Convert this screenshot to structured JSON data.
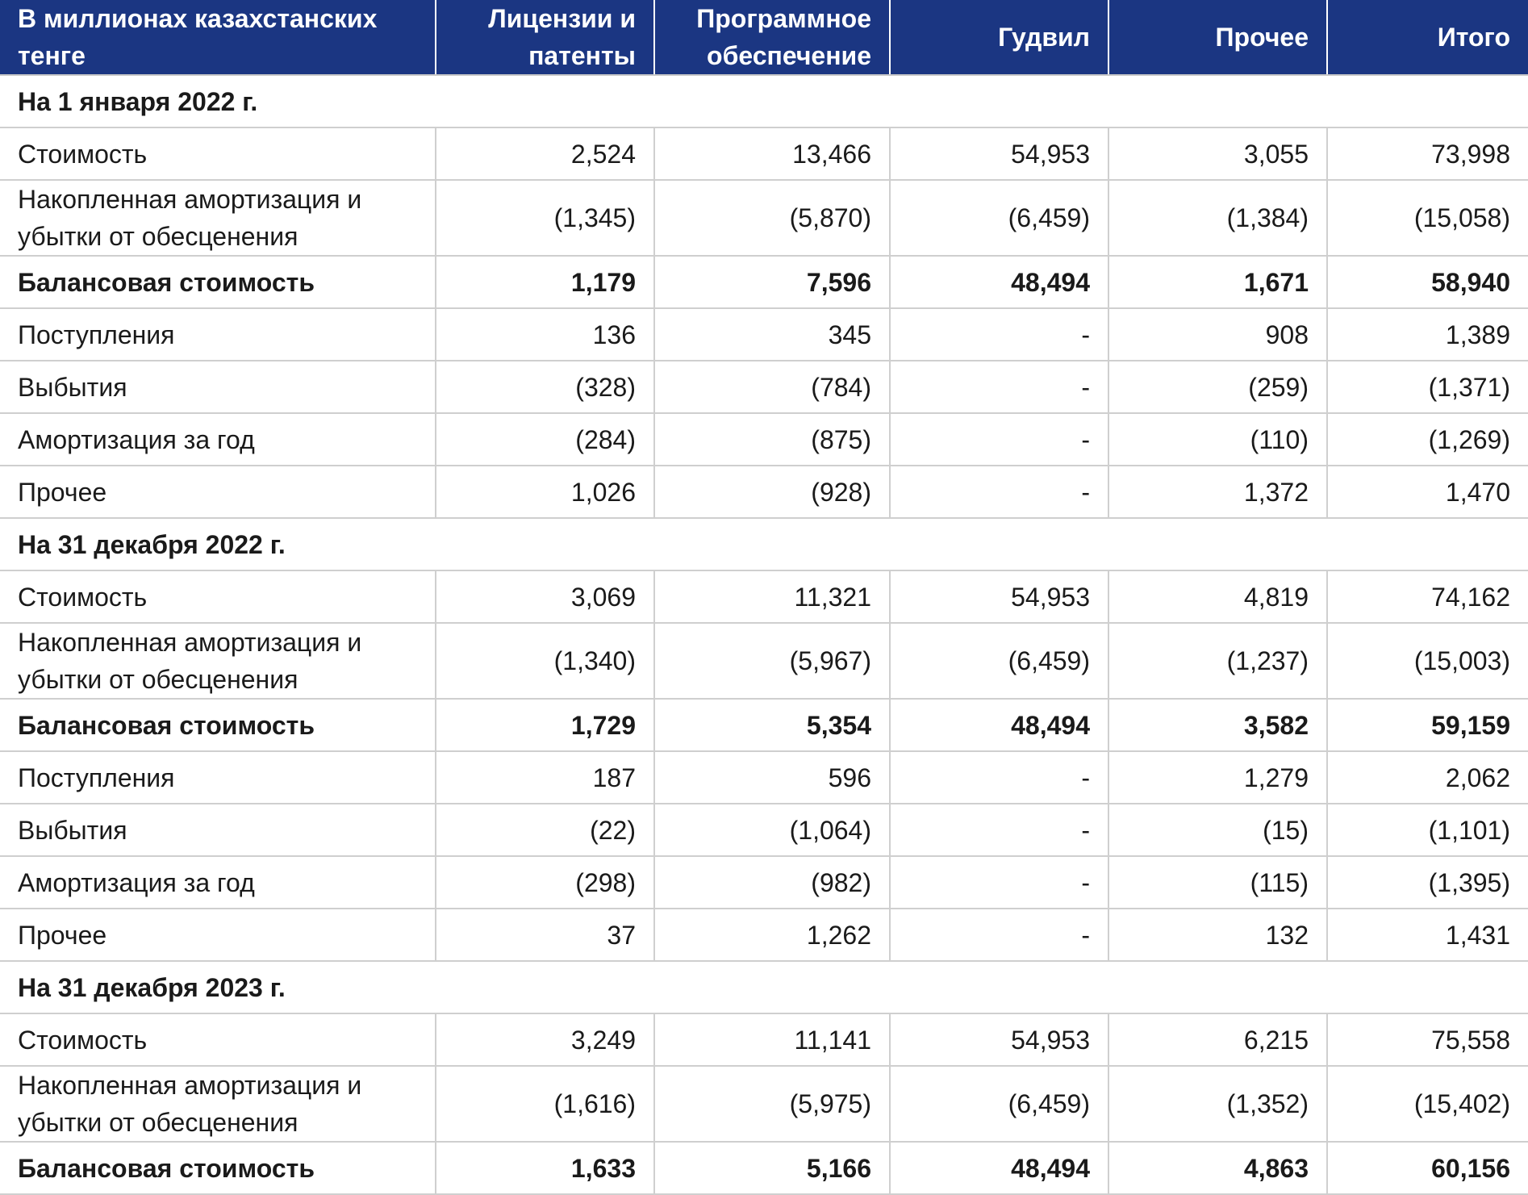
{
  "header": {
    "label": "В миллионах казахстанских тенге",
    "cols": [
      "Лицензии и патенты",
      "Программное обеспечение",
      "Гудвил",
      "Прочее",
      "Итого"
    ]
  },
  "sections": [
    {
      "title": "На 1 января 2022 г.",
      "rows": [
        {
          "label": "Стоимость",
          "values": [
            "2,524",
            "13,466",
            "54,953",
            "3,055",
            "73,998"
          ]
        },
        {
          "label": "Накопленная амортизация и убытки от обесценения",
          "values": [
            "(1,345)",
            "(5,870)",
            "(6,459)",
            "(1,384)",
            "(15,058)"
          ]
        },
        {
          "label": "Балансовая стоимость",
          "values": [
            "1,179",
            "7,596",
            "48,494",
            "1,671",
            "58,940"
          ]
        },
        {
          "label": "Поступления",
          "values": [
            "136",
            "345",
            "-",
            "908",
            "1,389"
          ]
        },
        {
          "label": "Выбытия",
          "values": [
            "(328)",
            "(784)",
            "-",
            "(259)",
            "(1,371)"
          ]
        },
        {
          "label": "Амортизация за год",
          "values": [
            "(284)",
            "(875)",
            "-",
            "(110)",
            "(1,269)"
          ]
        },
        {
          "label": "Прочее",
          "values": [
            "1,026",
            "(928)",
            "-",
            "1,372",
            "1,470"
          ]
        }
      ]
    },
    {
      "title": "На 31 декабря 2022 г.",
      "rows": [
        {
          "label": "Стоимость",
          "values": [
            "3,069",
            "11,321",
            "54,953",
            "4,819",
            "74,162"
          ]
        },
        {
          "label": "Накопленная амортизация и убытки от обесценения",
          "values": [
            "(1,340)",
            "(5,967)",
            "(6,459)",
            "(1,237)",
            "(15,003)"
          ]
        },
        {
          "label": "Балансовая стоимость",
          "values": [
            "1,729",
            "5,354",
            "48,494",
            "3,582",
            "59,159"
          ]
        },
        {
          "label": "Поступления",
          "values": [
            "187",
            "596",
            "-",
            "1,279",
            "2,062"
          ]
        },
        {
          "label": "Выбытия",
          "values": [
            "(22)",
            "(1,064)",
            "-",
            "(15)",
            "(1,101)"
          ]
        },
        {
          "label": "Амортизация за год",
          "values": [
            "(298)",
            "(982)",
            "-",
            "(115)",
            "(1,395)"
          ]
        },
        {
          "label": "Прочее",
          "values": [
            "37",
            "1,262",
            "-",
            "132",
            "1,431"
          ]
        }
      ]
    },
    {
      "title": "На 31 декабря 2023 г.",
      "rows": [
        {
          "label": "Стоимость",
          "values": [
            "3,249",
            "11,141",
            "54,953",
            "6,215",
            "75,558"
          ]
        },
        {
          "label": "Накопленная амортизация и убытки от обесценения",
          "values": [
            "(1,616)",
            "(5,975)",
            "(6,459)",
            "(1,352)",
            "(15,402)"
          ]
        },
        {
          "label": "Балансовая стоимость",
          "values": [
            "1,633",
            "5,166",
            "48,494",
            "4,863",
            "60,156"
          ]
        }
      ]
    }
  ],
  "colors": {
    "header_bg": "#1b3682",
    "header_text": "#ffffff",
    "grid": "#cfcfcf"
  }
}
